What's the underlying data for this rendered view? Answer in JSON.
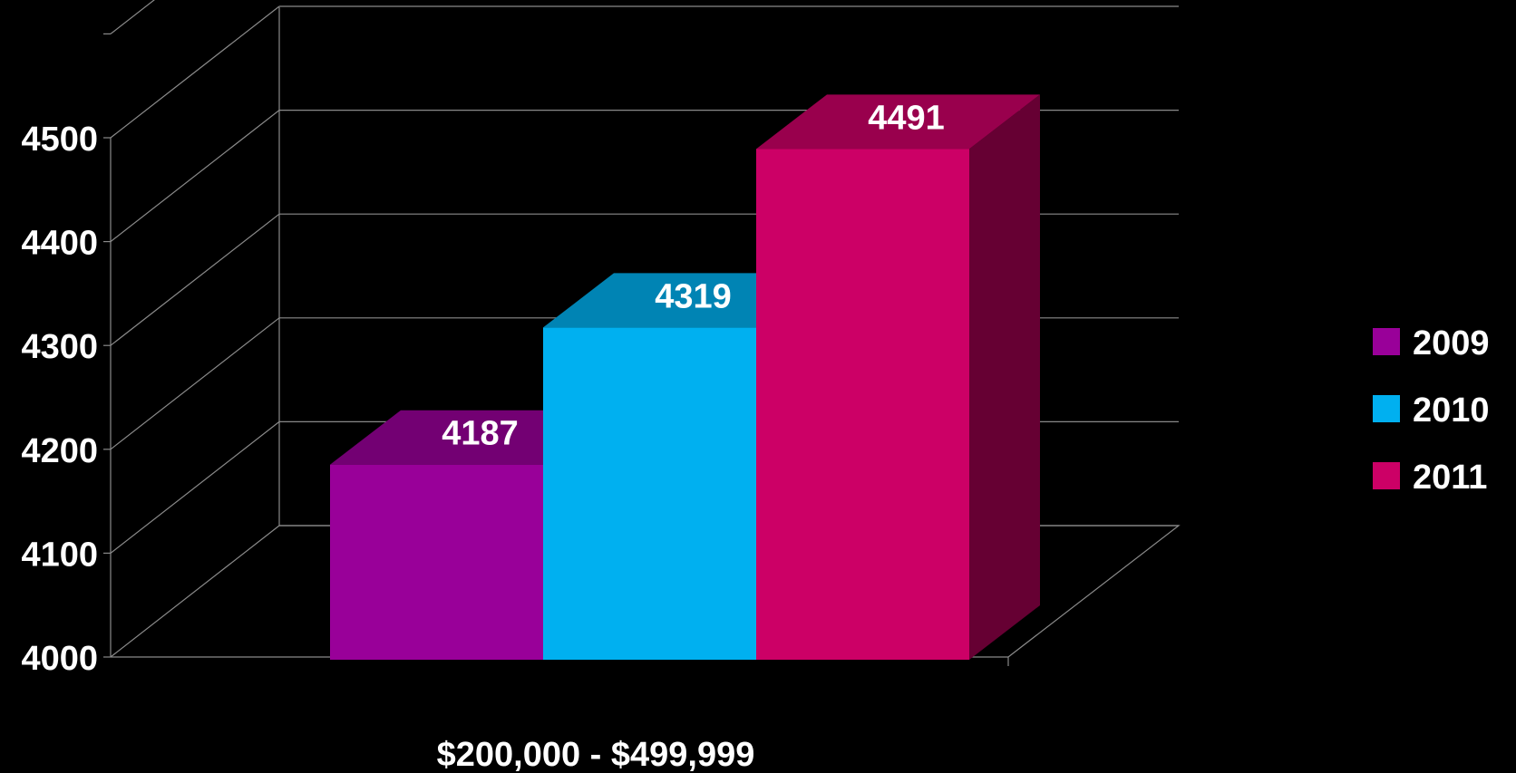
{
  "chart_data": {
    "type": "bar",
    "style": "3d-column",
    "categories": [
      "$200,000 - $499,999"
    ],
    "series": [
      {
        "name": "2009",
        "values": [
          4187
        ],
        "color": "#990099"
      },
      {
        "name": "2010",
        "values": [
          4319
        ],
        "color": "#00b0f0"
      },
      {
        "name": "2011",
        "values": [
          4491
        ],
        "color": "#cc0066"
      }
    ],
    "data_labels": [
      "4187",
      "4319",
      "4491"
    ],
    "ylim": [
      4000,
      4500
    ],
    "yticks": [
      "4000",
      "4100",
      "4200",
      "4300",
      "4400",
      "4500"
    ],
    "grid": true,
    "legend": "right",
    "background": "#000000",
    "text_color": "#ffffff"
  }
}
